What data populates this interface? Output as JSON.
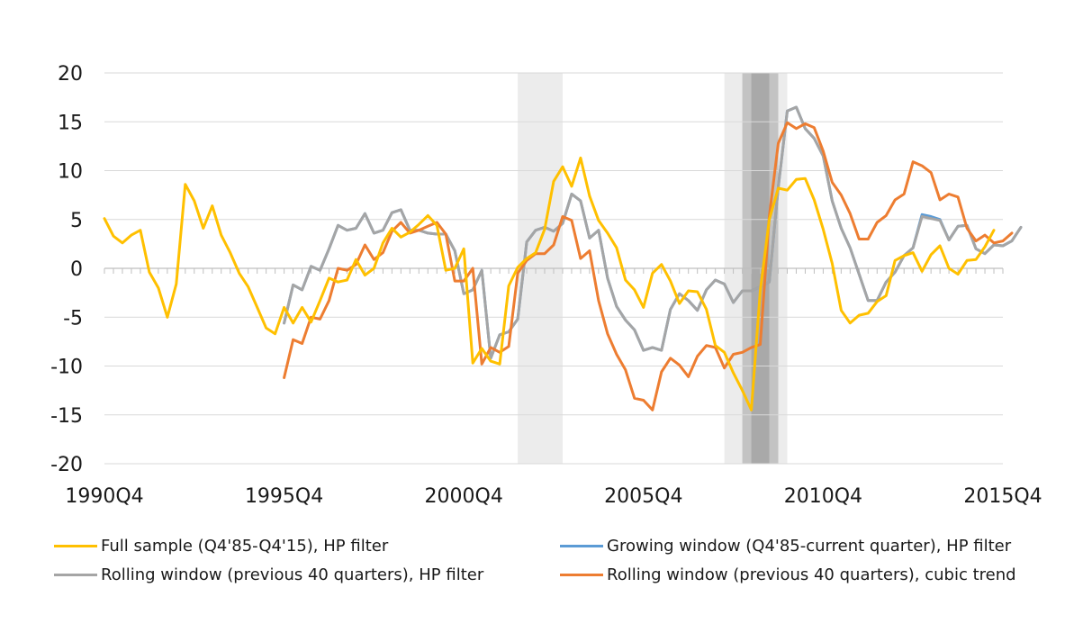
{
  "chart_data": {
    "type": "line",
    "title": "",
    "xlabel": "",
    "ylabel": "",
    "ylim": [
      -20,
      20
    ],
    "yticks": [
      "20",
      "15",
      "10",
      "5",
      "0",
      "-5",
      "-10",
      "-15",
      "-20"
    ],
    "xtick_labels": [
      "1990Q4",
      "1995Q4",
      "2000Q4",
      "2005Q4",
      "2010Q4",
      "2015Q4"
    ],
    "x_range": [
      "1990Q4",
      "2015Q4"
    ],
    "grid": "horizontal",
    "legend_position": "bottom",
    "shaded_periods": [
      {
        "from": "2002Q2",
        "to": "2003Q3",
        "shade": "light"
      },
      {
        "from": "2008Q1",
        "to": "2009Q4",
        "shade": "light"
      },
      {
        "from": "2008Q3",
        "to": "2009Q3",
        "shade": "medium"
      },
      {
        "from": "2008Q4",
        "to": "2009Q2",
        "shade": "dark"
      }
    ],
    "series": [
      {
        "name": "Full sample (Q4'85-Q4'15), HP filter",
        "color": "#FFC000",
        "start": "1990Q4",
        "values": [
          5.1,
          3.3,
          2.6,
          3.4,
          3.9,
          -0.4,
          -2.0,
          -5.0,
          -1.6,
          8.6,
          6.9,
          4.1,
          6.4,
          3.4,
          1.6,
          -0.5,
          -1.9,
          -4.0,
          -6.1,
          -6.7,
          -4.0,
          -5.6,
          -4.0,
          -5.5,
          -3.3,
          -1.0,
          -1.4,
          -1.2,
          0.9,
          -0.7,
          0.0,
          2.6,
          4.1,
          3.2,
          3.7,
          4.5,
          5.4,
          4.4,
          -0.2,
          0.0,
          2.0,
          -9.7,
          -8.2,
          -9.5,
          -9.8,
          -1.8,
          0.1,
          1.0,
          1.6,
          4.0,
          8.9,
          10.4,
          8.4,
          11.3,
          7.4,
          4.9,
          3.6,
          2.1,
          -1.2,
          -2.2,
          -4.0,
          -0.5,
          0.4,
          -1.3,
          -3.6,
          -2.3,
          -2.4,
          -4.2,
          -7.9,
          -8.6,
          -10.7,
          -12.5,
          -14.5,
          -2.3,
          5.0,
          8.2,
          8.0,
          9.1,
          9.2,
          7.0,
          4.0,
          0.5,
          -4.3,
          -5.6,
          -4.8,
          -4.6,
          -3.4,
          -2.8,
          0.8,
          1.3,
          1.6,
          -0.3,
          1.4,
          2.3,
          0.0,
          -0.6,
          0.8,
          0.9,
          2.2,
          3.9
        ]
      },
      {
        "name": "Growing window (Q4'85-current quarter), HP filter",
        "color": "#5B9BD5",
        "start": "1995Q4",
        "values": [
          -5.6,
          -1.7,
          -2.2,
          0.2,
          -0.2,
          2.0,
          4.4,
          3.9,
          4.1,
          5.6,
          3.6,
          3.9,
          5.7,
          6.0,
          3.9,
          3.9,
          3.6,
          3.5,
          3.5,
          1.8,
          -2.6,
          -2.2,
          -0.2,
          -9.2,
          -6.8,
          -6.5,
          -5.2,
          2.7,
          3.9,
          4.2,
          3.8,
          4.6,
          7.6,
          6.9,
          3.1,
          3.9,
          -1.0,
          -3.9,
          -5.3,
          -6.3,
          -8.4,
          -8.1,
          -8.4,
          -4.2,
          -2.6,
          -3.3,
          -4.3,
          -2.2,
          -1.2,
          -1.6,
          -3.5,
          -2.3,
          -2.3,
          -1.9,
          -1.4,
          8.3,
          16.1,
          16.5,
          14.3,
          13.3,
          11.5,
          6.9,
          4.1,
          2.1,
          -0.6,
          -3.3,
          -3.3,
          -1.4,
          -0.4,
          1.3,
          2.1,
          5.5,
          5.3,
          5.0,
          2.9,
          4.3,
          4.4,
          2.0,
          1.5,
          2.4,
          2.3,
          2.8,
          4.2
        ]
      },
      {
        "name": "Rolling window (previous 40 quarters), HP filter",
        "color": "#A5A5A5",
        "start": "1995Q4",
        "values": [
          -5.6,
          -1.7,
          -2.2,
          0.2,
          -0.2,
          2.0,
          4.4,
          3.9,
          4.1,
          5.6,
          3.6,
          3.9,
          5.7,
          6.0,
          3.9,
          3.9,
          3.6,
          3.5,
          3.5,
          1.8,
          -2.6,
          -2.2,
          -0.2,
          -9.2,
          -6.8,
          -6.5,
          -5.2,
          2.7,
          3.9,
          4.2,
          3.8,
          4.6,
          7.6,
          6.9,
          3.1,
          3.9,
          -1.0,
          -3.9,
          -5.3,
          -6.3,
          -8.4,
          -8.1,
          -8.4,
          -4.2,
          -2.6,
          -3.3,
          -4.3,
          -2.2,
          -1.2,
          -1.6,
          -3.5,
          -2.3,
          -2.3,
          -1.9,
          -1.4,
          8.3,
          16.1,
          16.5,
          14.3,
          13.3,
          11.5,
          6.9,
          4.1,
          2.1,
          -0.6,
          -3.3,
          -3.3,
          -1.4,
          -0.4,
          1.3,
          2.1,
          5.3,
          5.1,
          4.9,
          2.9,
          4.3,
          4.4,
          2.0,
          1.5,
          2.4,
          2.3,
          2.8,
          4.2
        ]
      },
      {
        "name": "Rolling window (previous 40 quarters), cubic trend",
        "color": "#ED7D31",
        "start": "1995Q4",
        "values": [
          -11.2,
          -7.3,
          -7.7,
          -5.0,
          -5.2,
          -3.3,
          0.0,
          -0.2,
          0.4,
          2.4,
          0.9,
          1.6,
          3.8,
          4.7,
          3.6,
          3.9,
          4.3,
          4.7,
          3.5,
          -1.3,
          -1.3,
          0.0,
          -9.8,
          -8.1,
          -8.6,
          -8.0,
          -0.5,
          0.8,
          1.5,
          1.5,
          2.4,
          5.3,
          4.9,
          1.0,
          1.8,
          -3.3,
          -6.7,
          -8.8,
          -10.4,
          -13.3,
          -13.5,
          -14.5,
          -10.6,
          -9.2,
          -9.9,
          -11.1,
          -9.0,
          -7.9,
          -8.1,
          -10.2,
          -8.8,
          -8.6,
          -8.1,
          -7.8,
          5.3,
          12.8,
          14.9,
          14.3,
          14.8,
          14.4,
          12.0,
          8.8,
          7.5,
          5.6,
          3.0,
          3.0,
          4.7,
          5.4,
          7.0,
          7.6,
          10.9,
          10.5,
          9.8,
          7.0,
          7.6,
          7.3,
          4.1,
          2.8,
          3.4,
          2.6,
          2.8,
          3.6
        ]
      }
    ]
  }
}
